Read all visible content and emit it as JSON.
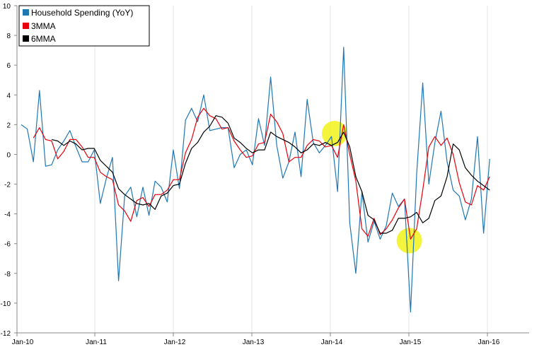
{
  "chart_data": {
    "type": "line",
    "ylim": [
      -12,
      10
    ],
    "y_ticks": [
      "10",
      "8",
      "6",
      "4",
      "2",
      "0",
      "-2",
      "-4",
      "-6",
      "-8",
      "-10",
      "-12"
    ],
    "x_ticks": [
      "Jan-10",
      "Jan-11",
      "Jan-12",
      "Jan-13",
      "Jan-14",
      "Jan-15",
      "Jan-16"
    ],
    "grid": true,
    "legend": "top-left",
    "series": [
      {
        "name": "Household Spending (YoY)",
        "color": "#1f77b4",
        "values": [
          2.0,
          1.7,
          -0.5,
          4.3,
          -0.8,
          -0.7,
          0.3,
          0.9,
          1.6,
          0.5,
          -0.5,
          -0.5,
          0.3,
          -3.3,
          -1.6,
          -0.2,
          -8.5,
          -2.8,
          -2.2,
          -4.2,
          -2.2,
          -4.1,
          -1.8,
          -2.2,
          -3.2,
          0.3,
          -2.3,
          2.3,
          3.1,
          2.2,
          4.0,
          1.6,
          1.7,
          1.8,
          1.8,
          -0.9,
          0.0,
          0.3,
          -0.7,
          2.4,
          0.6,
          5.2,
          0.6,
          -1.6,
          -0.5,
          1.5,
          -1.5,
          3.7,
          0.8,
          0.1,
          0.6,
          1.2,
          -2.5,
          7.2,
          -4.6,
          -8.0,
          -2.5,
          -5.9,
          -4.5,
          -5.7,
          -4.8,
          -2.6,
          -3.5,
          -3.0,
          -10.6,
          -1.3,
          4.8,
          -2.0,
          0.8,
          2.9,
          -0.5,
          -2.4,
          -2.8,
          -4.4,
          -3.0,
          1.2,
          -5.3,
          -0.3
        ]
      },
      {
        "name": "3MMA",
        "color": "#e8000b",
        "values": [
          null,
          null,
          1.1,
          1.8,
          1.0,
          0.9,
          -0.3,
          0.2,
          1.0,
          1.0,
          0.5,
          -0.2,
          -0.2,
          -1.2,
          -1.5,
          -1.7,
          -3.4,
          -3.8,
          -4.5,
          -3.1,
          -2.9,
          -3.5,
          -2.7,
          -2.7,
          -2.4,
          -1.7,
          -1.7,
          0.1,
          1.0,
          2.5,
          3.1,
          2.6,
          2.4,
          1.7,
          1.8,
          0.9,
          0.3,
          -0.2,
          -0.1,
          0.7,
          0.8,
          2.7,
          2.2,
          1.4,
          -0.5,
          -0.2,
          -0.2,
          0.6,
          1.0,
          0.9,
          0.5,
          0.6,
          -0.2,
          2.0,
          0.0,
          -1.8,
          -5.0,
          -5.5,
          -4.3,
          -5.4,
          -5.0,
          -4.4,
          -3.6,
          -3.0,
          -5.7,
          -5.0,
          -2.4,
          0.5,
          1.2,
          0.6,
          1.1,
          0.0,
          -1.9,
          -3.2,
          -3.4,
          -2.1,
          -2.4,
          -1.5
        ]
      },
      {
        "name": "6MMA",
        "color": "#000000",
        "values": [
          null,
          null,
          null,
          null,
          null,
          1.0,
          0.9,
          0.6,
          0.9,
          0.7,
          0.3,
          0.4,
          0.4,
          -0.4,
          -0.8,
          -1.2,
          -2.3,
          -2.7,
          -3.0,
          -3.3,
          -3.4,
          -3.3,
          -3.7,
          -2.8,
          -2.6,
          -2.1,
          -2.0,
          -0.6,
          0.4,
          0.8,
          1.5,
          1.9,
          2.6,
          2.5,
          2.1,
          1.1,
          0.8,
          0.4,
          0.1,
          0.3,
          0.3,
          1.5,
          1.2,
          1.0,
          0.8,
          0.5,
          0.1,
          0.3,
          0.7,
          0.6,
          0.8,
          0.6,
          0.8,
          1.5,
          0.5,
          -1.5,
          -2.5,
          -4.1,
          -4.4,
          -5.3,
          -5.3,
          -5.1,
          -4.3,
          -4.3,
          -4.2,
          -3.9,
          -4.6,
          -4.3,
          -3.1,
          -2.8,
          -1.5,
          0.7,
          0.3,
          -0.9,
          -1.4,
          -1.8,
          -2.1,
          -2.4
        ]
      }
    ],
    "annotations": [
      {
        "type": "highlight",
        "color": "#f2f21a",
        "x": 51.5,
        "y": 1.4
      },
      {
        "type": "highlight",
        "color": "#f2f21a",
        "x": 63.8,
        "y": -5.8
      }
    ]
  }
}
